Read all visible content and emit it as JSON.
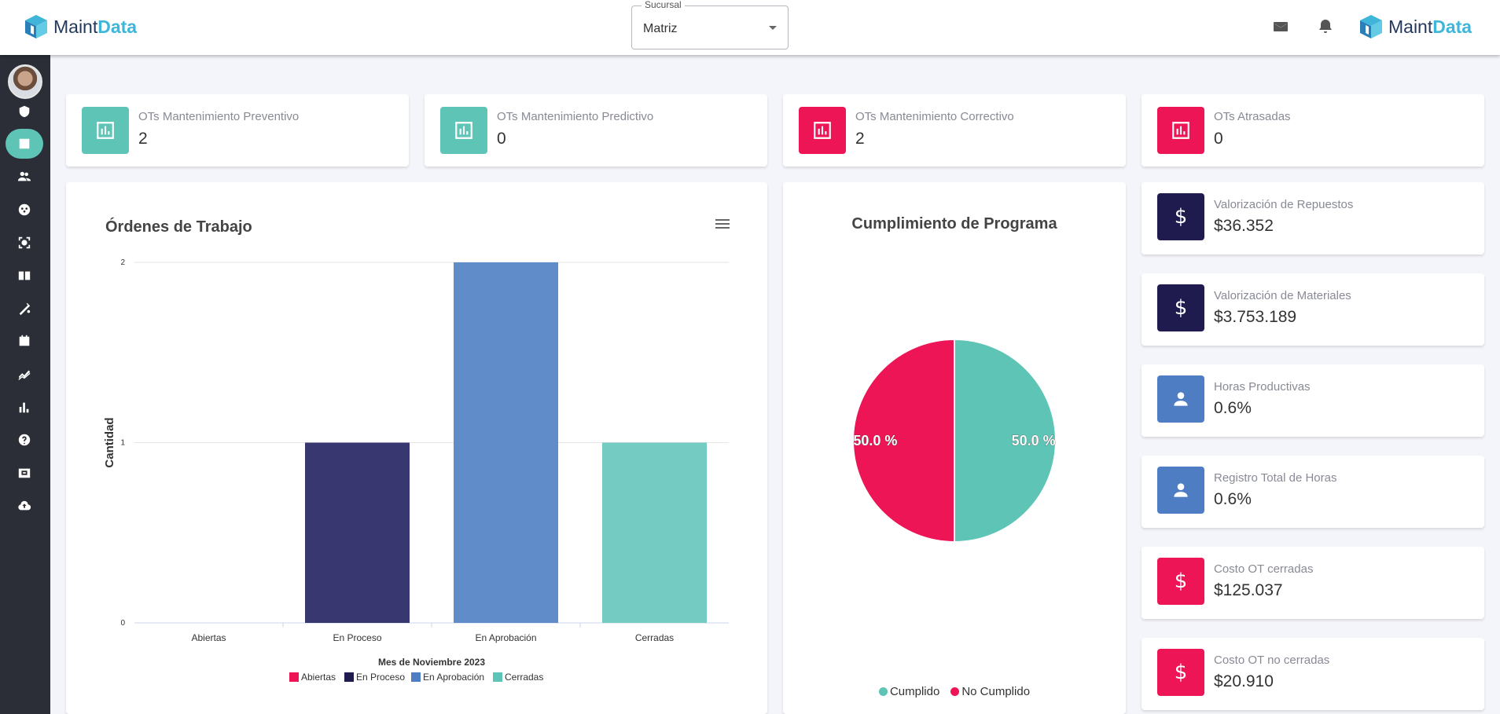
{
  "header": {
    "logo_left": {
      "part1": "Maint",
      "part2": "Data"
    },
    "logo_right": {
      "part1": "Maint",
      "part2": "Data"
    },
    "branch": {
      "legend": "Sucursal",
      "value": "Matriz"
    },
    "icons": [
      "mail-icon",
      "bell-icon"
    ]
  },
  "sidebar": {
    "items": [
      {
        "icon": "shield-gear-icon"
      },
      {
        "icon": "dashboard-icon",
        "active": true
      },
      {
        "icon": "users-icon"
      },
      {
        "icon": "group-icon"
      },
      {
        "icon": "scan-icon"
      },
      {
        "icon": "book-icon"
      },
      {
        "icon": "tools-icon"
      },
      {
        "icon": "calendar-icon"
      },
      {
        "icon": "trend-icon"
      },
      {
        "icon": "bar-chart-icon"
      },
      {
        "icon": "help-icon"
      },
      {
        "icon": "toolbox-icon"
      },
      {
        "icon": "cloud-upload-icon"
      }
    ]
  },
  "kpis": [
    {
      "label": "OTs Mantenimiento Preventivo",
      "value": "2",
      "color": "#5ec4b6"
    },
    {
      "label": "OTs Mantenimiento Predictivo",
      "value": "0",
      "color": "#5ec4b6"
    },
    {
      "label": "OTs Mantenimiento Correctivo",
      "value": "2",
      "color": "#ee1556"
    },
    {
      "label": "OTs Atrasadas",
      "value": "0",
      "color": "#ee1556"
    }
  ],
  "side_stats": [
    {
      "label": "Valorización de Repuestos",
      "value": "$36.352",
      "color": "#1f1b4e",
      "icon": "dollar-icon"
    },
    {
      "label": "Valorización de Materiales",
      "value": "$3.753.189",
      "color": "#1f1b4e",
      "icon": "dollar-icon"
    },
    {
      "label": "Horas Productivas",
      "value": "0.6%",
      "color": "#4e7dc4",
      "icon": "person-icon"
    },
    {
      "label": "Registro Total de Horas",
      "value": "0.6%",
      "color": "#4e7dc4",
      "icon": "person-icon"
    },
    {
      "label": "Costo OT cerradas",
      "value": "$125.037",
      "color": "#ee1556",
      "icon": "dollar-icon"
    },
    {
      "label": "Costo OT no cerradas",
      "value": "$20.910",
      "color": "#ee1556",
      "icon": "dollar-icon"
    }
  ],
  "chart_data": [
    {
      "type": "bar",
      "title": "Órdenes de Trabajo",
      "xlabel": "Mes de Noviembre 2023",
      "ylabel": "Cantidad",
      "categories": [
        "Abiertas",
        "En Proceso",
        "En Aprobación",
        "Cerradas"
      ],
      "values": [
        0,
        1,
        2,
        1
      ],
      "colors": [
        "#ee1556",
        "#393770",
        "#608cc9",
        "#73cbc1"
      ],
      "legend_colors": [
        "#ee1556",
        "#1f1b4e",
        "#4e7dc4",
        "#5ec4b6"
      ],
      "ylim": [
        0,
        2
      ],
      "yticks": [
        "0",
        "1",
        "2"
      ],
      "grid": true,
      "legend": "bottom"
    },
    {
      "type": "pie",
      "title": "Cumplimiento de Programa",
      "labels": [
        "Cumplido",
        "No Cumplido"
      ],
      "values": [
        50.0,
        50.0
      ],
      "value_labels": [
        "50.0 %",
        "50.0 %"
      ],
      "colors": [
        "#5ec4b6",
        "#ee1556"
      ],
      "legend": "bottom"
    }
  ]
}
